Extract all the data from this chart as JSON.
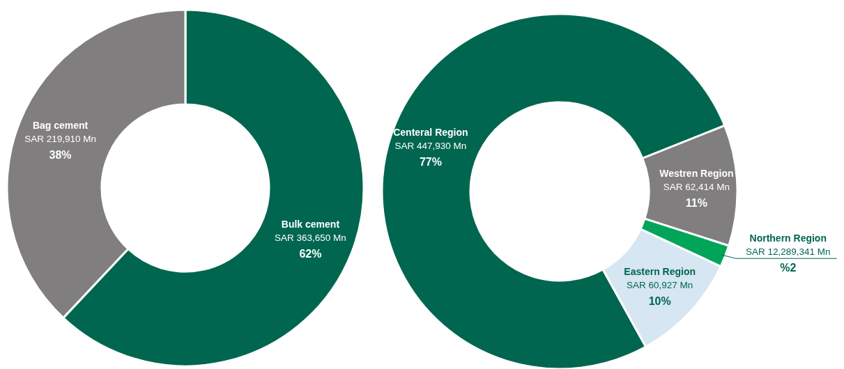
{
  "chart_data": [
    {
      "type": "donut",
      "categories": [
        "Bulk cement",
        "Bag cement"
      ],
      "values": [
        62,
        38
      ],
      "colors": [
        "#00664f",
        "#807e7f"
      ],
      "value_labels": [
        "SAR 363,650 Mn\n62%",
        "SAR 219,910 Mn\n38%"
      ]
    },
    {
      "type": "donut",
      "categories": [
        "Centeral Region",
        "Westren Region",
        "Northern Region",
        "Eastern Region"
      ],
      "values": [
        77,
        11,
        2,
        10
      ],
      "colors": [
        "#00664f",
        "#807e7f",
        "#00a55a",
        "#d6e6f2"
      ],
      "value_labels": [
        "SAR 447,930 Mn\n77%",
        "SAR 62,414 Mn\n11%",
        "SAR 12,289,341 Mn\n%2",
        "SAR 60,927 Mn\n10%"
      ]
    }
  ]
}
